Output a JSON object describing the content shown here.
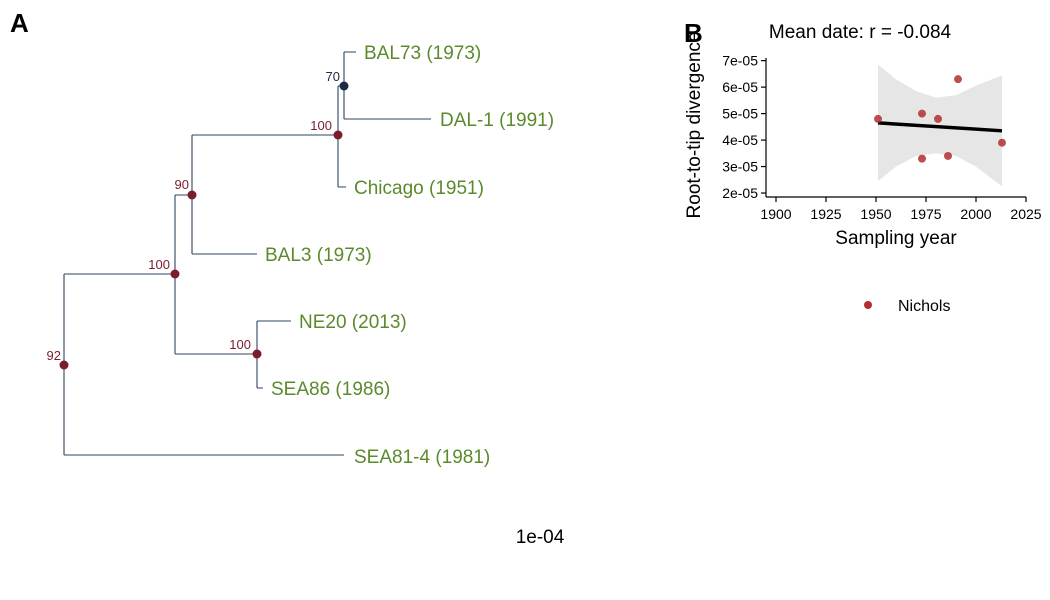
{
  "panel_a": {
    "label": "A",
    "scale_label": "1e-04",
    "tip_color": "#5b8a2c",
    "branch_color": "#2c4460",
    "node_color": "#7b1c2c",
    "node_color_alt": "#1a2a40",
    "tips": [
      "BAL73 (1973)",
      "DAL-1 (1991)",
      "Chicago (1951)",
      "BAL3 (1973)",
      "NE20 (2013)",
      "SEA86 (1986)",
      "SEA81-4 (1981)"
    ],
    "support_values": [
      "92",
      "100",
      "90",
      "100",
      "70",
      "100"
    ]
  },
  "panel_b": {
    "label": "B",
    "legend_label": "Nichols",
    "legend_color": "#b22f2f"
  },
  "chart_data": {
    "type": "scatter",
    "title": "Mean date: r = -0.084",
    "xlabel": "Sampling year",
    "ylabel": "Root-to-tip divergence",
    "xlim": [
      1895,
      2025
    ],
    "ylim": [
      1.85e-05,
      7.1e-05
    ],
    "xticks": [
      1900,
      1925,
      1950,
      1975,
      2000,
      2025
    ],
    "xtick_labels": [
      "1900",
      "1925",
      "1950",
      "1975",
      "2000",
      "2025"
    ],
    "yticks": [
      2e-05,
      3e-05,
      4e-05,
      5e-05,
      6e-05,
      7e-05
    ],
    "ytick_labels": [
      "2e-05",
      "3e-05",
      "4e-05",
      "5e-05",
      "6e-05",
      "7e-05"
    ],
    "series": [
      {
        "name": "Nichols",
        "x": [
          1951,
          1973,
          1973,
          1981,
          1986,
          1991,
          2013
        ],
        "y": [
          4.8e-05,
          5e-05,
          3.3e-05,
          4.8e-05,
          3.4e-05,
          6.3e-05,
          3.9e-05
        ]
      }
    ],
    "regression": {
      "x": [
        1951,
        2013
      ],
      "y": [
        4.65e-05,
        4.35e-05
      ]
    },
    "confidence_band": {
      "x": [
        1951,
        1960,
        1970,
        1980,
        1990,
        2000,
        2013
      ],
      "lower": [
        2.45e-05,
        3e-05,
        3.4e-05,
        3.5e-05,
        3.4e-05,
        3e-05,
        2.25e-05
      ],
      "upper": [
        6.85e-05,
        6.3e-05,
        5.85e-05,
        5.6e-05,
        5.7e-05,
        6.05e-05,
        6.45e-05
      ]
    },
    "grid": false,
    "legend_position": "bottom"
  }
}
